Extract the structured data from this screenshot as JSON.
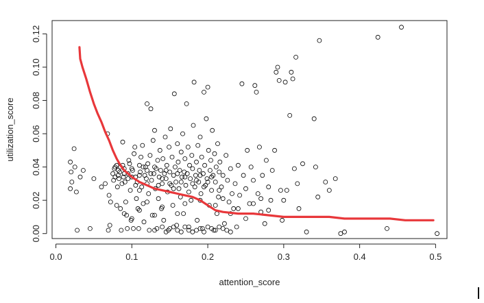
{
  "chart_data": {
    "type": "scatter",
    "title": "",
    "xlabel": "attention_score",
    "ylabel": "utilization_score",
    "xlim": [
      -0.005,
      0.515
    ],
    "ylim": [
      -0.003,
      0.128
    ],
    "x_ticks": [
      "0.0",
      "0.1",
      "0.2",
      "0.3",
      "0.4",
      "0.5"
    ],
    "y_ticks": [
      "0.00",
      "0.02",
      "0.04",
      "0.06",
      "0.08",
      "0.10",
      "0.12"
    ],
    "grid": false,
    "legend": "none",
    "point_color": "#000000",
    "curve_color": "#e8373a",
    "points": [
      [
        0.019,
        0.043
      ],
      [
        0.02,
        0.037
      ],
      [
        0.021,
        0.031
      ],
      [
        0.019,
        0.027
      ],
      [
        0.024,
        0.051
      ],
      [
        0.025,
        0.04
      ],
      [
        0.027,
        0.025
      ],
      [
        0.028,
        0.002
      ],
      [
        0.032,
        0.034
      ],
      [
        0.036,
        0.038
      ],
      [
        0.045,
        0.003
      ],
      [
        0.05,
        0.033
      ],
      [
        0.06,
        0.028
      ],
      [
        0.065,
        0.03
      ],
      [
        0.068,
        0.06
      ],
      [
        0.07,
        0.023
      ],
      [
        0.072,
        0.019
      ],
      [
        0.071,
        0.005
      ],
      [
        0.069,
        0.002
      ],
      [
        0.075,
        0.036
      ],
      [
        0.077,
        0.039
      ],
      [
        0.078,
        0.034
      ],
      [
        0.08,
        0.041
      ],
      [
        0.081,
        0.028
      ],
      [
        0.082,
        0.038
      ],
      [
        0.083,
        0.033
      ],
      [
        0.084,
        0.037
      ],
      [
        0.085,
        0.015
      ],
      [
        0.086,
        0.002
      ],
      [
        0.087,
        0.03
      ],
      [
        0.088,
        0.055
      ],
      [
        0.089,
        0.034
      ],
      [
        0.09,
        0.039
      ],
      [
        0.091,
        0.031
      ],
      [
        0.092,
        0.019
      ],
      [
        0.093,
        0.011
      ],
      [
        0.094,
        0.003
      ],
      [
        0.095,
        0.036
      ],
      [
        0.096,
        0.044
      ],
      [
        0.097,
        0.042
      ],
      [
        0.098,
        0.026
      ],
      [
        0.099,
        0.008
      ],
      [
        0.1,
        0.034
      ],
      [
        0.101,
        0.038
      ],
      [
        0.102,
        0.003
      ],
      [
        0.103,
        0.048
      ],
      [
        0.104,
        0.052
      ],
      [
        0.105,
        0.034
      ],
      [
        0.106,
        0.021
      ],
      [
        0.107,
        0.031
      ],
      [
        0.108,
        0.015
      ],
      [
        0.109,
        0.003
      ],
      [
        0.11,
        0.041
      ],
      [
        0.111,
        0.037
      ],
      [
        0.112,
        0.046
      ],
      [
        0.113,
        0.028
      ],
      [
        0.114,
        0.053
      ],
      [
        0.115,
        0.018
      ],
      [
        0.116,
        0.007
      ],
      [
        0.117,
        0.035
      ],
      [
        0.118,
        0.04
      ],
      [
        0.119,
        0.033
      ],
      [
        0.12,
        0.078
      ],
      [
        0.121,
        0.042
      ],
      [
        0.122,
        0.024
      ],
      [
        0.123,
        0.002
      ],
      [
        0.124,
        0.047
      ],
      [
        0.125,
        0.075
      ],
      [
        0.126,
        0.032
      ],
      [
        0.127,
        0.011
      ],
      [
        0.128,
        0.056
      ],
      [
        0.129,
        0.036
      ],
      [
        0.13,
        0.062
      ],
      [
        0.131,
        0.027
      ],
      [
        0.132,
        0.039
      ],
      [
        0.133,
        0.003
      ],
      [
        0.134,
        0.044
      ],
      [
        0.135,
        0.021
      ],
      [
        0.136,
        0.034
      ],
      [
        0.137,
        0.05
      ],
      [
        0.138,
        0.038
      ],
      [
        0.139,
        0.015
      ],
      [
        0.14,
        0.03
      ],
      [
        0.141,
        0.045
      ],
      [
        0.142,
        0.008
      ],
      [
        0.143,
        0.036
      ],
      [
        0.144,
        0.058
      ],
      [
        0.145,
        0.033
      ],
      [
        0.146,
        0.041
      ],
      [
        0.147,
        0.025
      ],
      [
        0.148,
        0.002
      ],
      [
        0.149,
        0.052
      ],
      [
        0.15,
        0.037
      ],
      [
        0.151,
        0.063
      ],
      [
        0.152,
        0.029
      ],
      [
        0.153,
        0.046
      ],
      [
        0.154,
        0.017
      ],
      [
        0.155,
        0.035
      ],
      [
        0.156,
        0.084
      ],
      [
        0.157,
        0.04
      ],
      [
        0.158,
        0.031
      ],
      [
        0.159,
        0.005
      ],
      [
        0.16,
        0.054
      ],
      [
        0.161,
        0.043
      ],
      [
        0.162,
        0.027
      ],
      [
        0.163,
        0.038
      ],
      [
        0.164,
        0.022
      ],
      [
        0.165,
        0.049
      ],
      [
        0.166,
        0.034
      ],
      [
        0.167,
        0.06
      ],
      [
        0.168,
        0.012
      ],
      [
        0.169,
        0.037
      ],
      [
        0.17,
        0.045
      ],
      [
        0.171,
        0.029
      ],
      [
        0.172,
        0.078
      ],
      [
        0.173,
        0.036
      ],
      [
        0.174,
        0.052
      ],
      [
        0.175,
        0.002
      ],
      [
        0.176,
        0.041
      ],
      [
        0.177,
        0.033
      ],
      [
        0.178,
        0.02
      ],
      [
        0.179,
        0.047
      ],
      [
        0.18,
        0.039
      ],
      [
        0.181,
        0.065
      ],
      [
        0.182,
        0.091
      ],
      [
        0.183,
        0.028
      ],
      [
        0.184,
        0.035
      ],
      [
        0.185,
        0.043
      ],
      [
        0.186,
        0.008
      ],
      [
        0.187,
        0.053
      ],
      [
        0.188,
        0.031
      ],
      [
        0.189,
        0.038
      ],
      [
        0.19,
        0.058
      ],
      [
        0.191,
        0.024
      ],
      [
        0.192,
        0.046
      ],
      [
        0.193,
        0.003
      ],
      [
        0.194,
        0.036
      ],
      [
        0.195,
        0.085
      ],
      [
        0.196,
        0.041
      ],
      [
        0.197,
        0.029
      ],
      [
        0.198,
        0.069
      ],
      [
        0.199,
        0.033
      ],
      [
        0.2,
        0.088
      ],
      [
        0.201,
        0.05
      ],
      [
        0.202,
        0.017
      ],
      [
        0.203,
        0.038
      ],
      [
        0.204,
        0.044
      ],
      [
        0.205,
        0.026
      ],
      [
        0.206,
        0.062
      ],
      [
        0.207,
        0.035
      ],
      [
        0.208,
        0.002
      ],
      [
        0.209,
        0.048
      ],
      [
        0.21,
        0.031
      ],
      [
        0.211,
        0.04
      ],
      [
        0.212,
        0.012
      ],
      [
        0.213,
        0.054
      ],
      [
        0.214,
        0.022
      ],
      [
        0.215,
        0.037
      ],
      [
        0.216,
        0.043
      ],
      [
        0.218,
        0.028
      ],
      [
        0.22,
        0.035
      ],
      [
        0.222,
        0.006
      ],
      [
        0.224,
        0.047
      ],
      [
        0.226,
        0.032
      ],
      [
        0.228,
        0.019
      ],
      [
        0.23,
        0.039
      ],
      [
        0.232,
        0.024
      ],
      [
        0.234,
        0.015
      ],
      [
        0.236,
        0.03
      ],
      [
        0.238,
        0.004
      ],
      [
        0.24,
        0.041
      ],
      [
        0.242,
        0.023
      ],
      [
        0.245,
        0.09
      ],
      [
        0.247,
        0.035
      ],
      [
        0.25,
        0.027
      ],
      [
        0.252,
        0.05
      ],
      [
        0.255,
        0.018
      ],
      [
        0.257,
        0.04
      ],
      [
        0.26,
        0.032
      ],
      [
        0.262,
        0.089
      ],
      [
        0.264,
        0.085
      ],
      [
        0.266,
        0.024
      ],
      [
        0.268,
        0.052
      ],
      [
        0.27,
        0.013
      ],
      [
        0.272,
        0.035
      ],
      [
        0.275,
        0.006
      ],
      [
        0.277,
        0.044
      ],
      [
        0.28,
        0.028
      ],
      [
        0.283,
        0.02
      ],
      [
        0.285,
        0.038
      ],
      [
        0.288,
        0.05
      ],
      [
        0.29,
        0.097
      ],
      [
        0.292,
        0.1
      ],
      [
        0.294,
        0.092
      ],
      [
        0.296,
        0.026
      ],
      [
        0.298,
        0.008
      ],
      [
        0.3,
        0.02
      ],
      [
        0.302,
        0.091
      ],
      [
        0.304,
        0.026
      ],
      [
        0.308,
        0.071
      ],
      [
        0.31,
        0.097
      ],
      [
        0.312,
        0.093
      ],
      [
        0.314,
        0.039
      ],
      [
        0.316,
        0.106
      ],
      [
        0.318,
        0.03
      ],
      [
        0.32,
        0.015
      ],
      [
        0.325,
        0.042
      ],
      [
        0.33,
        0.001
      ],
      [
        0.34,
        0.069
      ],
      [
        0.342,
        0.04
      ],
      [
        0.345,
        0.022
      ],
      [
        0.347,
        0.116
      ],
      [
        0.355,
        0.031
      ],
      [
        0.36,
        0.026
      ],
      [
        0.368,
        0.033
      ],
      [
        0.375,
        0.0
      ],
      [
        0.38,
        0.001
      ],
      [
        0.424,
        0.118
      ],
      [
        0.436,
        0.003
      ],
      [
        0.455,
        0.124
      ],
      [
        0.502,
        0.0
      ],
      [
        0.15,
        0.003
      ],
      [
        0.16,
        0.002
      ],
      [
        0.17,
        0.004
      ],
      [
        0.18,
        0.001
      ],
      [
        0.19,
        0.003
      ],
      [
        0.2,
        0.004
      ],
      [
        0.21,
        0.002
      ],
      [
        0.22,
        0.003
      ],
      [
        0.23,
        0.001
      ],
      [
        0.14,
        0.004
      ],
      [
        0.13,
        0.002
      ],
      [
        0.165,
        0.001
      ],
      [
        0.175,
        0.004
      ],
      [
        0.185,
        0.002
      ],
      [
        0.195,
        0.001
      ],
      [
        0.205,
        0.003
      ],
      [
        0.215,
        0.004
      ],
      [
        0.225,
        0.002
      ],
      [
        0.155,
        0.004
      ],
      [
        0.145,
        0.001
      ],
      [
        0.125,
        0.036
      ],
      [
        0.135,
        0.029
      ],
      [
        0.145,
        0.038
      ],
      [
        0.155,
        0.027
      ],
      [
        0.165,
        0.031
      ],
      [
        0.175,
        0.025
      ],
      [
        0.185,
        0.032
      ],
      [
        0.195,
        0.028
      ],
      [
        0.205,
        0.034
      ],
      [
        0.215,
        0.026
      ],
      [
        0.15,
        0.03
      ],
      [
        0.16,
        0.036
      ],
      [
        0.17,
        0.034
      ],
      [
        0.18,
        0.03
      ],
      [
        0.19,
        0.035
      ],
      [
        0.2,
        0.031
      ],
      [
        0.14,
        0.033
      ],
      [
        0.13,
        0.04
      ],
      [
        0.12,
        0.03
      ],
      [
        0.11,
        0.035
      ],
      [
        0.085,
        0.04
      ],
      [
        0.09,
        0.036
      ],
      [
        0.095,
        0.033
      ],
      [
        0.1,
        0.039
      ],
      [
        0.105,
        0.029
      ],
      [
        0.11,
        0.026
      ],
      [
        0.115,
        0.04
      ],
      [
        0.12,
        0.038
      ],
      [
        0.078,
        0.04
      ],
      [
        0.082,
        0.035
      ],
      [
        0.076,
        0.032
      ],
      [
        0.088,
        0.041
      ],
      [
        0.24,
        0.015
      ],
      [
        0.26,
        0.018
      ],
      [
        0.28,
        0.014
      ],
      [
        0.25,
        0.009
      ],
      [
        0.27,
        0.021
      ],
      [
        0.23,
        0.012
      ],
      [
        0.21,
        0.017
      ],
      [
        0.22,
        0.021
      ],
      [
        0.19,
        0.02
      ],
      [
        0.17,
        0.018
      ],
      [
        0.16,
        0.012
      ],
      [
        0.14,
        0.016
      ],
      [
        0.13,
        0.011
      ],
      [
        0.12,
        0.019
      ],
      [
        0.11,
        0.014
      ],
      [
        0.1,
        0.009
      ],
      [
        0.09,
        0.012
      ],
      [
        0.08,
        0.017
      ]
    ],
    "curve": [
      [
        0.031,
        0.112
      ],
      [
        0.032,
        0.105
      ],
      [
        0.035,
        0.1
      ],
      [
        0.04,
        0.093
      ],
      [
        0.045,
        0.085
      ],
      [
        0.05,
        0.078
      ],
      [
        0.055,
        0.072
      ],
      [
        0.06,
        0.067
      ],
      [
        0.065,
        0.061
      ],
      [
        0.07,
        0.056
      ],
      [
        0.075,
        0.05
      ],
      [
        0.08,
        0.045
      ],
      [
        0.085,
        0.041
      ],
      [
        0.09,
        0.038
      ],
      [
        0.095,
        0.036
      ],
      [
        0.1,
        0.034
      ],
      [
        0.11,
        0.031
      ],
      [
        0.12,
        0.029
      ],
      [
        0.13,
        0.027
      ],
      [
        0.14,
        0.026
      ],
      [
        0.15,
        0.025
      ],
      [
        0.16,
        0.024
      ],
      [
        0.17,
        0.023
      ],
      [
        0.18,
        0.022
      ],
      [
        0.19,
        0.02
      ],
      [
        0.2,
        0.017
      ],
      [
        0.21,
        0.014
      ],
      [
        0.22,
        0.013
      ],
      [
        0.24,
        0.012
      ],
      [
        0.26,
        0.012
      ],
      [
        0.28,
        0.011
      ],
      [
        0.3,
        0.01
      ],
      [
        0.32,
        0.01
      ],
      [
        0.34,
        0.01
      ],
      [
        0.36,
        0.01
      ],
      [
        0.38,
        0.009
      ],
      [
        0.4,
        0.009
      ],
      [
        0.42,
        0.009
      ],
      [
        0.44,
        0.009
      ],
      [
        0.46,
        0.008
      ],
      [
        0.48,
        0.008
      ],
      [
        0.497,
        0.008
      ]
    ]
  }
}
